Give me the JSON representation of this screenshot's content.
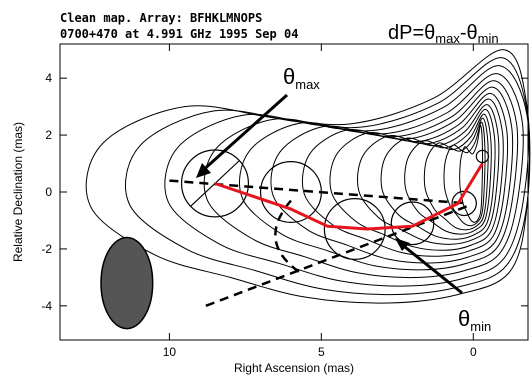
{
  "header": {
    "line1": "Clean map.  Array: BFHKLMNOPS",
    "line2": "0700+470 at 4.991 GHz 1995 Sep 04"
  },
  "chart_data": {
    "type": "contour",
    "xlabel": "Right Ascension  (mas)",
    "ylabel": "Relative Declination  (mas)",
    "xlim": [
      13.6,
      -1.8
    ],
    "ylim": [
      -5.2,
      5.2
    ],
    "x_ticks": [
      10,
      5,
      0
    ],
    "y_ticks": [
      4,
      2,
      0,
      -2,
      -4
    ],
    "contour_line_color": "#000000",
    "ridge_line": {
      "color": "#e8141c",
      "points": [
        [
          8.5,
          0.3
        ],
        [
          6.0,
          -0.6
        ],
        [
          4.8,
          -1.2
        ],
        [
          3.5,
          -1.3
        ],
        [
          2.0,
          -1.2
        ],
        [
          0.5,
          -0.4
        ],
        [
          -0.3,
          1.0
        ]
      ]
    },
    "component_circles": [
      {
        "x": 8.5,
        "y": 0.3,
        "r": 1.1
      },
      {
        "x": 6.0,
        "y": 0.0,
        "r": 1.0
      },
      {
        "x": 3.9,
        "y": -1.3,
        "r": 1.0
      },
      {
        "x": 2.0,
        "y": -1.1,
        "r": 0.7
      },
      {
        "x": 0.3,
        "y": -0.4,
        "r": 0.4
      },
      {
        "x": -0.3,
        "y": 1.25,
        "r": 0.2
      }
    ],
    "beam": {
      "x": 11.4,
      "y": -3.2,
      "major": 1.6,
      "minor": 0.85,
      "color": "#555555"
    },
    "reference_lines": [
      {
        "name": "max-direction",
        "from": [
          10.0,
          0.4
        ],
        "to": [
          0.2,
          -0.4
        ]
      },
      {
        "name": "min-direction",
        "from": [
          8.8,
          -4.0
        ],
        "to": [
          0.2,
          -0.5
        ]
      }
    ],
    "annotations": {
      "formula": {
        "text": "dP=θ",
        "sub1": "max",
        "mid": "-θ",
        "sub2": "min"
      },
      "theta_max": {
        "text": "θ",
        "sub": "max"
      },
      "theta_min": {
        "text": "θ",
        "sub": "min"
      }
    }
  }
}
